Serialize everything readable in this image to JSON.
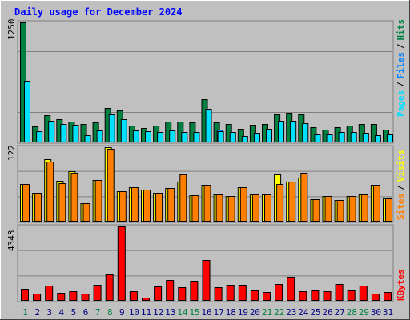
{
  "title": "Daily usage for December 2024",
  "colors": {
    "background": "#c0c0c0",
    "title_text": "#0000ff",
    "hits": "#008040",
    "files": "#0080ff",
    "pages": "#00e0ff",
    "visits": "#ffff00",
    "sites": "#ff8000",
    "kbytes": "#ff0000",
    "weekend_day": "#008040",
    "weekday": "#000080"
  },
  "chart_data": [
    {
      "type": "bar",
      "title": "Daily usage for December 2024",
      "categories": [
        "1",
        "2",
        "3",
        "4",
        "5",
        "6",
        "7",
        "8",
        "9",
        "10",
        "11",
        "12",
        "13",
        "14",
        "15",
        "16",
        "17",
        "18",
        "19",
        "20",
        "21",
        "22",
        "23",
        "24",
        "25",
        "26",
        "27",
        "28",
        "29",
        "30",
        "31"
      ],
      "weekend_days": [
        "1",
        "7",
        "8",
        "14",
        "15",
        "21",
        "22",
        "28",
        "29"
      ],
      "ylim": [
        0,
        1250
      ],
      "ymax_label": "1250",
      "right_labels": [
        "Pages",
        "Files",
        "Hits"
      ],
      "series": [
        {
          "name": "Hits",
          "values": [
            1250,
            170,
            285,
            238,
            220,
            190,
            210,
            360,
            330,
            175,
            150,
            175,
            215,
            215,
            210,
            450,
            205,
            195,
            140,
            185,
            190,
            295,
            305,
            295,
            155,
            135,
            160,
            175,
            190,
            195,
            130
          ]
        },
        {
          "name": "Files",
          "values": [
            0,
            0,
            0,
            0,
            0,
            0,
            0,
            0,
            0,
            0,
            0,
            0,
            0,
            0,
            0,
            0,
            135,
            0,
            0,
            0,
            0,
            0,
            0,
            0,
            0,
            0,
            0,
            0,
            0,
            0,
            0
          ]
        },
        {
          "name": "Pages",
          "values": [
            645,
            115,
            225,
            190,
            185,
            75,
            125,
            290,
            240,
            125,
            115,
            110,
            125,
            105,
            110,
            350,
            115,
            105,
            70,
            100,
            140,
            225,
            225,
            200,
            80,
            80,
            105,
            105,
            100,
            75,
            80
          ]
        }
      ]
    },
    {
      "type": "bar",
      "categories": [
        "1",
        "2",
        "3",
        "4",
        "5",
        "6",
        "7",
        "8",
        "9",
        "10",
        "11",
        "12",
        "13",
        "14",
        "15",
        "16",
        "17",
        "18",
        "19",
        "20",
        "21",
        "22",
        "23",
        "24",
        "25",
        "26",
        "27",
        "28",
        "29",
        "30",
        "31"
      ],
      "ylim": [
        0,
        122
      ],
      "ymax_label": "122",
      "right_labels": [
        "Sites",
        "Visits"
      ],
      "series": [
        {
          "name": "Visits",
          "values": [
            62,
            47,
            102,
            67,
            83,
            30,
            68,
            122,
            50,
            57,
            52,
            47,
            55,
            65,
            43,
            60,
            45,
            42,
            57,
            45,
            45,
            78,
            65,
            72,
            37,
            42,
            35,
            42,
            45,
            60,
            38
          ]
        },
        {
          "name": "Sites",
          "values": [
            62,
            47,
            98,
            63,
            80,
            30,
            68,
            120,
            50,
            57,
            52,
            47,
            55,
            78,
            43,
            60,
            45,
            42,
            57,
            45,
            45,
            62,
            65,
            80,
            37,
            42,
            35,
            42,
            45,
            60,
            38
          ]
        }
      ]
    },
    {
      "type": "bar",
      "categories": [
        "1",
        "2",
        "3",
        "4",
        "5",
        "6",
        "7",
        "8",
        "9",
        "10",
        "11",
        "12",
        "13",
        "14",
        "15",
        "16",
        "17",
        "18",
        "19",
        "20",
        "21",
        "22",
        "23",
        "24",
        "25",
        "26",
        "27",
        "28",
        "29",
        "30",
        "31"
      ],
      "ylim": [
        0,
        4343
      ],
      "ymax_label": "4343",
      "right_labels": [
        "KBytes"
      ],
      "series": [
        {
          "name": "KBytes",
          "values": [
            720,
            440,
            900,
            450,
            570,
            420,
            920,
            1520,
            4343,
            540,
            210,
            830,
            1230,
            800,
            1150,
            2400,
            790,
            950,
            950,
            600,
            530,
            960,
            1380,
            540,
            600,
            560,
            980,
            630,
            880,
            400,
            520
          ]
        }
      ]
    }
  ]
}
